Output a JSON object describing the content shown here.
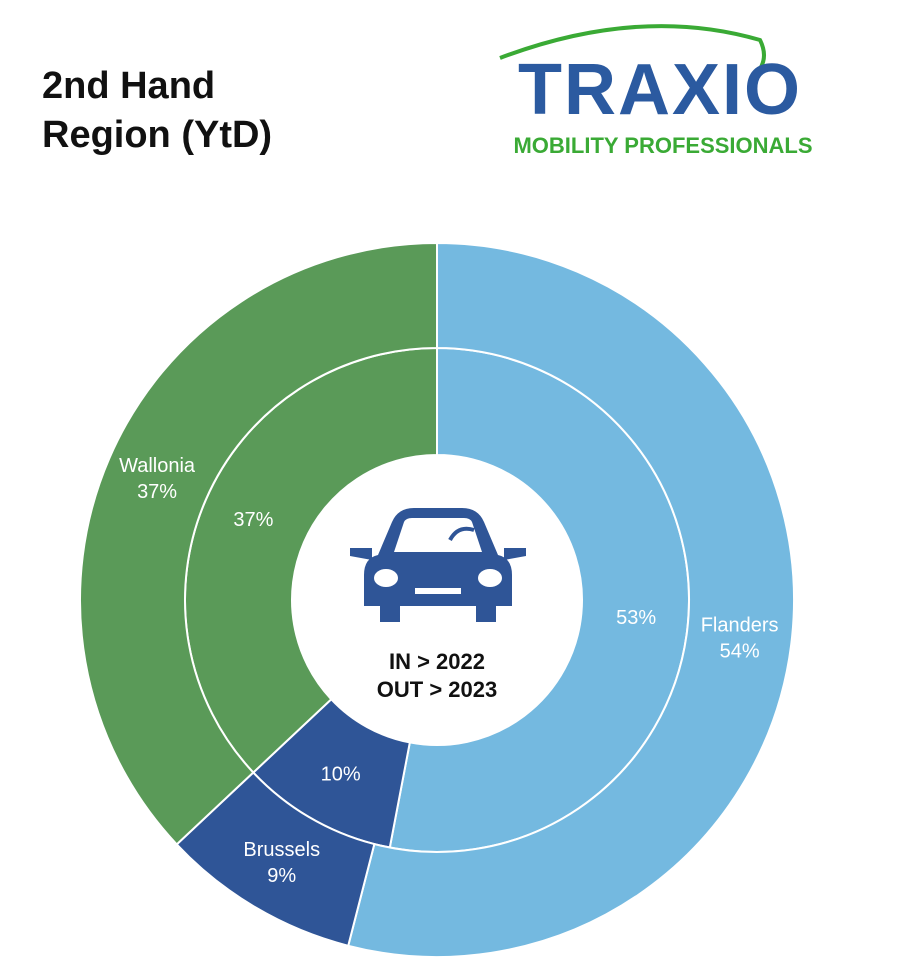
{
  "chart_data": {
    "type": "donut",
    "title": "2nd Hand Region (YtD)",
    "categories": [
      "Flanders",
      "Brussels",
      "Wallonia"
    ],
    "colors": [
      "#74b9e0",
      "#2f5597",
      "#5a9a58"
    ],
    "series": [
      {
        "values": [
          53,
          10,
          37
        ],
        "value_labels": [
          "53%",
          "10%",
          "37%"
        ]
      },
      {
        "values": [
          54,
          9,
          37
        ],
        "value_labels": [
          "54%",
          "9%",
          "37%"
        ]
      }
    ],
    "center_labels": [
      "IN > 2022",
      "OUT > 2023"
    ]
  },
  "logo": {
    "text": "TRAXIO",
    "tagline": "MOBILITY PROFESSIONALS"
  }
}
